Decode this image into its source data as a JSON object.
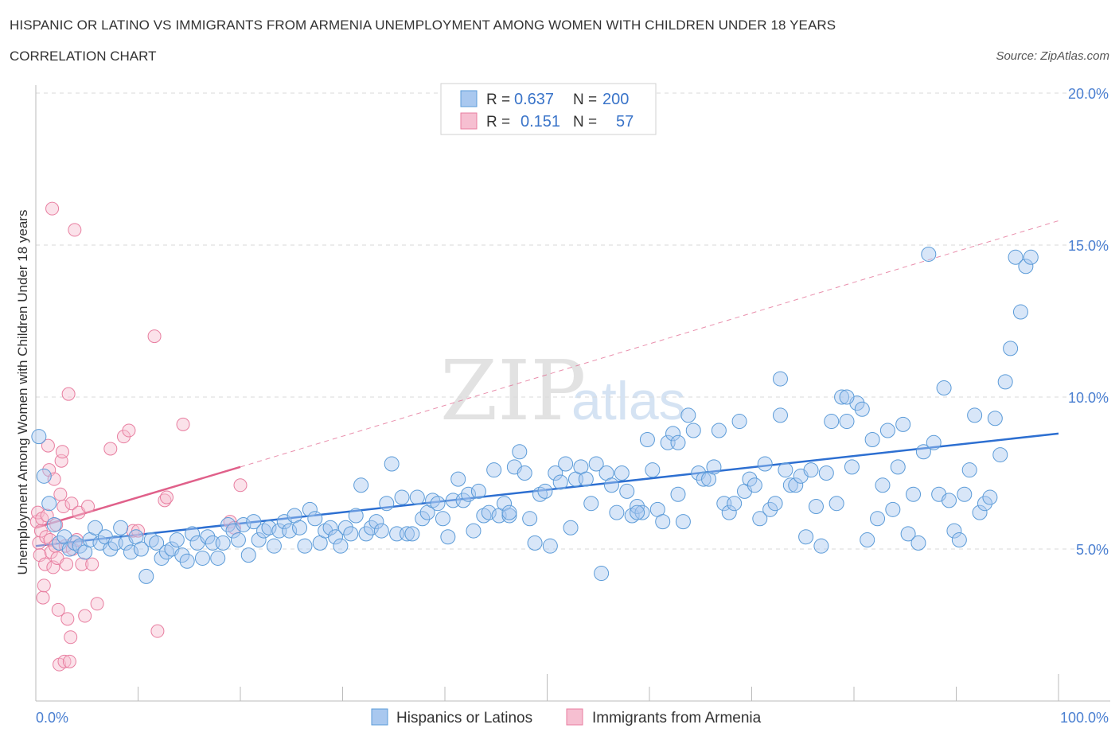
{
  "header": {
    "title": "HISPANIC OR LATINO VS IMMIGRANTS FROM ARMENIA UNEMPLOYMENT AMONG WOMEN WITH CHILDREN UNDER 18 YEARS",
    "subtitle": "CORRELATION CHART",
    "source": "Source: ZipAtlas.com"
  },
  "watermark": {
    "zip": "ZIP",
    "atlas": "atlas"
  },
  "colors": {
    "blue": "#5b9bd8",
    "blue_fill": "#a9c8ef",
    "blue_line": "#2d6fd1",
    "pink": "#e87ea0",
    "pink_fill": "#f6bfd1",
    "pink_line": "#e0608a",
    "grid": "#d9d9d9",
    "axis_text": "#4a7fd1"
  },
  "legend": {
    "rows": [
      {
        "r_label": "R =",
        "r_value": "0.637",
        "n_label": "N =",
        "n_value": "200"
      },
      {
        "r_label": "R =",
        "r_value": "0.151",
        "n_label": "N =",
        "n_value": "57"
      }
    ]
  },
  "bottom_legend": [
    "Hispanics or Latinos",
    "Immigrants from Armenia"
  ],
  "chart_data": {
    "type": "scatter",
    "title": "HISPANIC OR LATINO VS IMMIGRANTS FROM ARMENIA UNEMPLOYMENT AMONG WOMEN WITH CHILDREN UNDER 18 YEARS",
    "subtitle": "CORRELATION CHART",
    "ylabel": "Unemployment Among Women with Children Under 18 years",
    "xlabel": "",
    "xlim": [
      0,
      100
    ],
    "ylim": [
      0,
      20
    ],
    "x_tick_labels": [
      "0.0%",
      "100.0%"
    ],
    "y_ticks": [
      5,
      10,
      15,
      20
    ],
    "y_tick_labels": [
      "5.0%",
      "10.0%",
      "15.0%",
      "20.0%"
    ],
    "grid": "horizontal dashed",
    "legend_position": "top-center",
    "series": [
      {
        "name": "Hispanics or Latinos",
        "r": 0.637,
        "n": 200,
        "trend": {
          "x": [
            0,
            100
          ],
          "y": [
            5.1,
            8.8
          ],
          "style": "solid"
        },
        "points": [
          [
            0.3,
            8.7
          ],
          [
            0.8,
            7.4
          ],
          [
            1.3,
            6.5
          ],
          [
            1.8,
            5.8
          ],
          [
            2.3,
            5.2
          ],
          [
            2.8,
            5.4
          ],
          [
            3.3,
            5.0
          ],
          [
            3.8,
            5.2
          ],
          [
            4.3,
            5.1
          ],
          [
            4.8,
            4.9
          ],
          [
            5.3,
            5.3
          ],
          [
            5.8,
            5.7
          ],
          [
            6.3,
            5.2
          ],
          [
            6.8,
            5.4
          ],
          [
            7.3,
            5.0
          ],
          [
            7.8,
            5.2
          ],
          [
            8.3,
            5.7
          ],
          [
            8.8,
            5.2
          ],
          [
            9.3,
            4.9
          ],
          [
            9.8,
            5.4
          ],
          [
            10.3,
            5.0
          ],
          [
            10.8,
            4.1
          ],
          [
            11.3,
            5.3
          ],
          [
            11.8,
            5.2
          ],
          [
            12.3,
            4.7
          ],
          [
            12.8,
            4.9
          ],
          [
            13.3,
            5.0
          ],
          [
            13.8,
            5.3
          ],
          [
            14.3,
            4.8
          ],
          [
            14.8,
            4.6
          ],
          [
            15.3,
            5.5
          ],
          [
            15.8,
            5.2
          ],
          [
            16.3,
            4.7
          ],
          [
            16.8,
            5.4
          ],
          [
            17.3,
            5.2
          ],
          [
            17.8,
            4.7
          ],
          [
            18.3,
            5.2
          ],
          [
            18.8,
            5.8
          ],
          [
            19.3,
            5.6
          ],
          [
            19.8,
            5.3
          ],
          [
            20.3,
            5.8
          ],
          [
            20.8,
            4.8
          ],
          [
            21.3,
            5.9
          ],
          [
            21.8,
            5.3
          ],
          [
            22.3,
            5.6
          ],
          [
            22.8,
            5.7
          ],
          [
            23.3,
            5.1
          ],
          [
            23.8,
            5.6
          ],
          [
            24.3,
            5.9
          ],
          [
            24.8,
            5.6
          ],
          [
            25.3,
            6.1
          ],
          [
            25.8,
            5.7
          ],
          [
            26.3,
            5.1
          ],
          [
            26.8,
            6.3
          ],
          [
            27.3,
            6.0
          ],
          [
            27.8,
            5.2
          ],
          [
            28.3,
            5.6
          ],
          [
            28.8,
            5.7
          ],
          [
            29.3,
            5.4
          ],
          [
            29.8,
            5.1
          ],
          [
            30.3,
            5.7
          ],
          [
            30.8,
            5.5
          ],
          [
            31.3,
            6.1
          ],
          [
            31.8,
            7.1
          ],
          [
            32.3,
            5.5
          ],
          [
            32.8,
            5.7
          ],
          [
            33.3,
            5.9
          ],
          [
            33.8,
            5.6
          ],
          [
            34.3,
            6.5
          ],
          [
            34.8,
            7.8
          ],
          [
            35.3,
            5.5
          ],
          [
            35.8,
            6.7
          ],
          [
            36.3,
            5.5
          ],
          [
            36.8,
            5.5
          ],
          [
            37.3,
            6.7
          ],
          [
            37.8,
            6.0
          ],
          [
            38.3,
            6.2
          ],
          [
            38.8,
            6.6
          ],
          [
            39.3,
            6.5
          ],
          [
            39.8,
            6.0
          ],
          [
            40.3,
            5.4
          ],
          [
            40.8,
            6.6
          ],
          [
            41.3,
            7.3
          ],
          [
            41.8,
            6.6
          ],
          [
            42.3,
            6.8
          ],
          [
            42.8,
            5.6
          ],
          [
            43.3,
            6.9
          ],
          [
            43.8,
            6.1
          ],
          [
            44.3,
            6.2
          ],
          [
            44.8,
            7.6
          ],
          [
            45.3,
            6.1
          ],
          [
            45.8,
            6.5
          ],
          [
            46.3,
            6.1
          ],
          [
            46.8,
            7.7
          ],
          [
            47.3,
            8.2
          ],
          [
            47.8,
            7.5
          ],
          [
            48.3,
            6.0
          ],
          [
            48.8,
            5.2
          ],
          [
            49.3,
            6.8
          ],
          [
            49.8,
            6.9
          ],
          [
            50.3,
            5.1
          ],
          [
            50.8,
            7.5
          ],
          [
            51.3,
            7.2
          ],
          [
            51.8,
            7.8
          ],
          [
            52.3,
            5.7
          ],
          [
            52.8,
            7.3
          ],
          [
            53.3,
            7.7
          ],
          [
            53.8,
            7.3
          ],
          [
            54.3,
            6.5
          ],
          [
            54.8,
            7.8
          ],
          [
            55.3,
            4.2
          ],
          [
            55.8,
            7.5
          ],
          [
            56.3,
            7.1
          ],
          [
            56.8,
            6.2
          ],
          [
            57.3,
            7.5
          ],
          [
            57.8,
            6.9
          ],
          [
            58.3,
            6.1
          ],
          [
            58.8,
            6.4
          ],
          [
            59.3,
            6.2
          ],
          [
            59.8,
            8.6
          ],
          [
            60.3,
            7.6
          ],
          [
            60.8,
            6.3
          ],
          [
            61.3,
            5.9
          ],
          [
            61.8,
            8.5
          ],
          [
            62.3,
            8.8
          ],
          [
            62.8,
            6.8
          ],
          [
            63.3,
            5.9
          ],
          [
            63.8,
            9.4
          ],
          [
            64.3,
            8.9
          ],
          [
            64.8,
            7.5
          ],
          [
            65.3,
            7.3
          ],
          [
            65.8,
            7.3
          ],
          [
            66.3,
            7.7
          ],
          [
            66.8,
            8.9
          ],
          [
            67.3,
            6.5
          ],
          [
            67.8,
            6.2
          ],
          [
            68.3,
            6.5
          ],
          [
            68.8,
            9.2
          ],
          [
            69.3,
            6.9
          ],
          [
            69.8,
            7.3
          ],
          [
            70.3,
            7.1
          ],
          [
            70.8,
            6.0
          ],
          [
            71.3,
            7.8
          ],
          [
            71.8,
            6.3
          ],
          [
            72.3,
            6.5
          ],
          [
            72.8,
            10.6
          ],
          [
            73.3,
            7.6
          ],
          [
            73.8,
            7.1
          ],
          [
            74.3,
            7.1
          ],
          [
            74.8,
            7.4
          ],
          [
            75.3,
            5.4
          ],
          [
            75.8,
            7.6
          ],
          [
            76.3,
            6.4
          ],
          [
            76.8,
            5.1
          ],
          [
            77.3,
            7.5
          ],
          [
            77.8,
            9.2
          ],
          [
            78.3,
            6.5
          ],
          [
            78.8,
            10.0
          ],
          [
            79.3,
            9.2
          ],
          [
            79.8,
            7.7
          ],
          [
            80.3,
            9.8
          ],
          [
            80.8,
            9.6
          ],
          [
            81.3,
            5.3
          ],
          [
            81.8,
            8.6
          ],
          [
            82.3,
            6.0
          ],
          [
            82.8,
            7.1
          ],
          [
            83.3,
            8.9
          ],
          [
            83.8,
            6.3
          ],
          [
            84.3,
            7.7
          ],
          [
            84.8,
            9.1
          ],
          [
            85.3,
            5.5
          ],
          [
            85.8,
            6.8
          ],
          [
            86.3,
            5.2
          ],
          [
            86.8,
            8.2
          ],
          [
            87.3,
            14.7
          ],
          [
            87.8,
            8.5
          ],
          [
            88.3,
            6.8
          ],
          [
            88.8,
            10.3
          ],
          [
            89.3,
            6.6
          ],
          [
            89.8,
            5.6
          ],
          [
            90.3,
            5.3
          ],
          [
            90.8,
            6.8
          ],
          [
            91.3,
            7.6
          ],
          [
            91.8,
            9.4
          ],
          [
            92.3,
            6.2
          ],
          [
            92.8,
            6.5
          ],
          [
            93.3,
            6.7
          ],
          [
            93.8,
            9.3
          ],
          [
            94.3,
            8.1
          ],
          [
            94.8,
            10.5
          ],
          [
            95.3,
            11.6
          ],
          [
            95.8,
            14.6
          ],
          [
            96.3,
            12.8
          ],
          [
            96.8,
            14.3
          ],
          [
            97.3,
            14.6
          ],
          [
            79.3,
            10.0
          ],
          [
            72.8,
            9.4
          ],
          [
            62.8,
            8.5
          ],
          [
            58.8,
            6.2
          ],
          [
            46.3,
            6.2
          ]
        ]
      },
      {
        "name": "Immigrants from Armenia",
        "r": 0.151,
        "n": 57,
        "trend": {
          "x": [
            0,
            20
          ],
          "y": [
            5.7,
            7.7
          ],
          "extended_to": [
            100,
            15.8
          ],
          "style": "solid then dashed"
        },
        "points": [
          [
            0.1,
            5.9
          ],
          [
            0.2,
            6.2
          ],
          [
            0.3,
            5.2
          ],
          [
            0.4,
            4.8
          ],
          [
            0.5,
            5.6
          ],
          [
            0.6,
            6.0
          ],
          [
            0.7,
            3.4
          ],
          [
            0.8,
            3.8
          ],
          [
            0.9,
            4.5
          ],
          [
            1.0,
            5.4
          ],
          [
            1.1,
            6.1
          ],
          [
            1.2,
            8.4
          ],
          [
            1.3,
            7.6
          ],
          [
            1.4,
            5.3
          ],
          [
            1.5,
            4.9
          ],
          [
            1.6,
            16.2
          ],
          [
            1.7,
            4.4
          ],
          [
            1.8,
            7.3
          ],
          [
            1.9,
            5.1
          ],
          [
            2.0,
            5.8
          ],
          [
            2.1,
            4.7
          ],
          [
            2.2,
            3.0
          ],
          [
            2.3,
            1.2
          ],
          [
            2.4,
            6.8
          ],
          [
            2.5,
            7.9
          ],
          [
            2.6,
            8.2
          ],
          [
            2.7,
            6.4
          ],
          [
            2.8,
            1.3
          ],
          [
            2.9,
            5.1
          ],
          [
            3.0,
            4.5
          ],
          [
            3.1,
            2.7
          ],
          [
            3.2,
            10.1
          ],
          [
            3.3,
            1.3
          ],
          [
            3.4,
            2.1
          ],
          [
            3.5,
            6.5
          ],
          [
            3.6,
            5.0
          ],
          [
            3.8,
            15.5
          ],
          [
            4.2,
            6.2
          ],
          [
            4.5,
            4.5
          ],
          [
            4.8,
            2.8
          ],
          [
            5.1,
            6.4
          ],
          [
            5.5,
            4.5
          ],
          [
            6.0,
            3.2
          ],
          [
            7.3,
            8.3
          ],
          [
            8.6,
            8.7
          ],
          [
            9.1,
            8.9
          ],
          [
            9.5,
            5.6
          ],
          [
            10.0,
            5.6
          ],
          [
            11.6,
            12.0
          ],
          [
            11.9,
            2.3
          ],
          [
            12.6,
            6.6
          ],
          [
            12.8,
            6.7
          ],
          [
            14.4,
            9.1
          ],
          [
            19.0,
            5.9
          ],
          [
            19.4,
            5.7
          ],
          [
            20.0,
            7.1
          ],
          [
            4.0,
            5.3
          ]
        ]
      }
    ]
  }
}
